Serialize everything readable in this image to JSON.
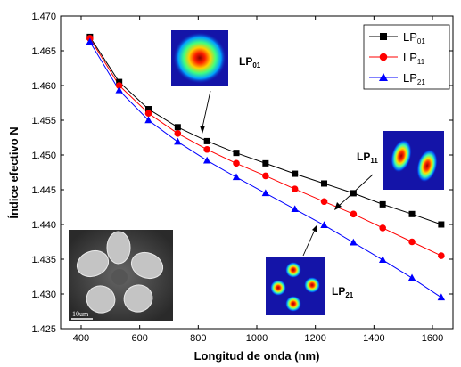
{
  "chart_data": {
    "type": "line",
    "xlabel": "Longitud de onda (nm)",
    "ylabel": "Índice efectivo N",
    "xlim": [
      330,
      1670
    ],
    "ylim": [
      1.425,
      1.47
    ],
    "xticks": [
      400,
      600,
      800,
      1000,
      1200,
      1400,
      1600
    ],
    "xtick_labels": [
      "400",
      "600",
      "800",
      "1000",
      "1200",
      "1400",
      "1600"
    ],
    "yticks": [
      1.425,
      1.43,
      1.435,
      1.44,
      1.445,
      1.45,
      1.455,
      1.46,
      1.465,
      1.47
    ],
    "ytick_labels": [
      "1.425",
      "1.430",
      "1.435",
      "1.440",
      "1.445",
      "1.450",
      "1.455",
      "1.460",
      "1.465",
      "1.470"
    ],
    "x": [
      430,
      530,
      630,
      730,
      830,
      930,
      1030,
      1130,
      1230,
      1330,
      1430,
      1530,
      1630
    ],
    "series": [
      {
        "name": "LP",
        "subscript": "01",
        "color": "#000000",
        "marker": "square",
        "values": [
          1.467,
          1.4605,
          1.4566,
          1.454,
          1.452,
          1.4503,
          1.4488,
          1.4473,
          1.4459,
          1.4445,
          1.4429,
          1.4415,
          1.44
        ]
      },
      {
        "name": "LP",
        "subscript": "11",
        "color": "#ff0000",
        "marker": "circle",
        "values": [
          1.4668,
          1.46,
          1.456,
          1.4531,
          1.4508,
          1.4488,
          1.447,
          1.4451,
          1.4433,
          1.4415,
          1.4395,
          1.4375,
          1.4355
        ]
      },
      {
        "name": "LP",
        "subscript": "21",
        "color": "#0000ff",
        "marker": "triangle",
        "values": [
          1.4663,
          1.4593,
          1.455,
          1.4519,
          1.4492,
          1.4468,
          1.4445,
          1.4422,
          1.4399,
          1.4374,
          1.4349,
          1.4323,
          1.4295
        ]
      }
    ],
    "legend_position": "top-right",
    "grid": false,
    "annotations": [
      {
        "label": "LP",
        "subscript": "01"
      },
      {
        "label": "LP",
        "subscript": "11"
      },
      {
        "label": "LP",
        "subscript": "21"
      }
    ],
    "inset_scale_label": "10um"
  }
}
